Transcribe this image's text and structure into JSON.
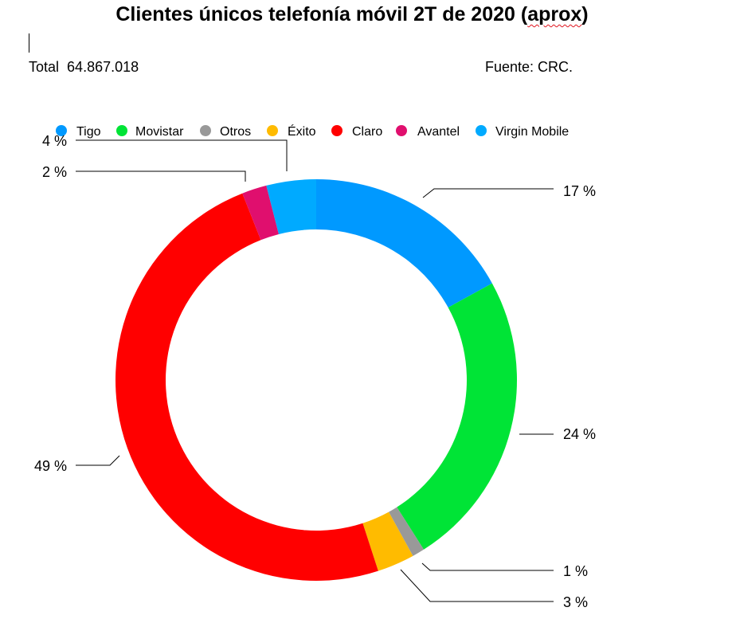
{
  "header": {
    "title_main": "Clientes únicos telefonía móvil  2T de 2020 (",
    "title_squiggle": "aprox",
    "title_end": ")",
    "total_label": "Total",
    "total_value": "64.867.018",
    "source": "Fuente: CRC."
  },
  "chart_data": {
    "type": "pie",
    "variant": "donut",
    "title": "Clientes únicos telefonía móvil  2T de 2020 (aprox)",
    "legend_position": "top",
    "slices": [
      {
        "name": "Tigo",
        "value": 17,
        "label": "17 %",
        "color": "#0099ff"
      },
      {
        "name": "Movistar",
        "value": 24,
        "label": "24 %",
        "color": "#00e436"
      },
      {
        "name": "Otros",
        "value": 1,
        "label": "1 %",
        "color": "#999999"
      },
      {
        "name": "Éxito",
        "value": 3,
        "label": "3 %",
        "color": "#ffbb00"
      },
      {
        "name": "Claro",
        "value": 49,
        "label": "49 %",
        "color": "#ff0000"
      },
      {
        "name": "Avantel",
        "value": 2,
        "label": "2 %",
        "color": "#e00f6e"
      },
      {
        "name": "Virgin Mobile",
        "value": 4,
        "label": "4 %",
        "color": "#00aaff"
      }
    ]
  }
}
